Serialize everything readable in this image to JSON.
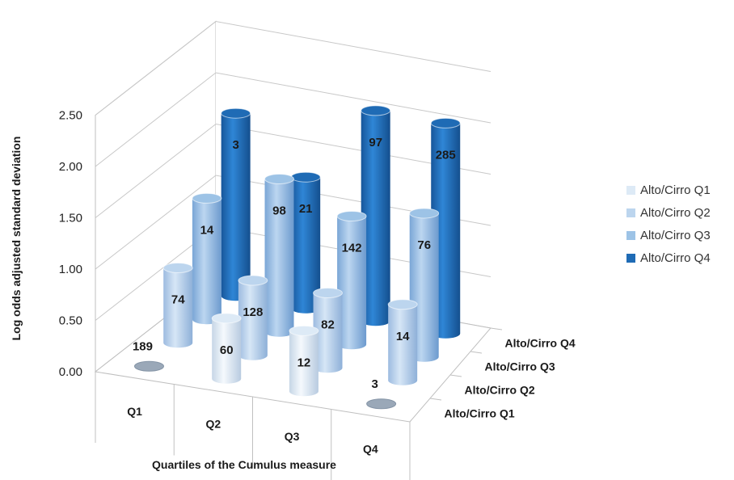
{
  "chart_data": {
    "type": "bar",
    "subtype": "3d-cylinder",
    "title": "",
    "xlabel": "Quartiles of the Cumulus measure",
    "ylabel": "Log odds adjusted standard deviation",
    "categories": [
      "Q1",
      "Q2",
      "Q3",
      "Q4"
    ],
    "ylim": [
      0,
      2.5
    ],
    "yticks": [
      "0.00",
      "0.50",
      "1.00",
      "1.50",
      "2.00",
      "2.50"
    ],
    "depth_labels": [
      "Alto/Cirro Q1",
      "Alto/Cirro Q2",
      "Alto/Cirro Q3",
      "Alto/Cirro Q4"
    ],
    "legend_position": "right",
    "series": [
      {
        "name": "Alto/Cirro Q1",
        "color": "#ddeaf6",
        "values": [
          0.0,
          0.59,
          0.59,
          0.0
        ],
        "labels": [
          "189",
          "60",
          "12",
          "3"
        ]
      },
      {
        "name": "Alto/Cirro Q2",
        "color": "#bcd5ee",
        "values": [
          0.73,
          0.73,
          0.73,
          0.74
        ],
        "labels": [
          "74",
          "128",
          "82",
          "14"
        ]
      },
      {
        "name": "Alto/Cirro Q3",
        "color": "#9dc3e6",
        "values": [
          1.18,
          1.49,
          1.25,
          1.4
        ],
        "labels": [
          "14",
          "98",
          "142",
          "76"
        ]
      },
      {
        "name": "Alto/Cirro Q4",
        "color": "#1f6bb5",
        "values": [
          1.78,
          1.28,
          2.05,
          2.05
        ],
        "labels": [
          "3",
          "21",
          "97",
          "285"
        ]
      }
    ]
  }
}
